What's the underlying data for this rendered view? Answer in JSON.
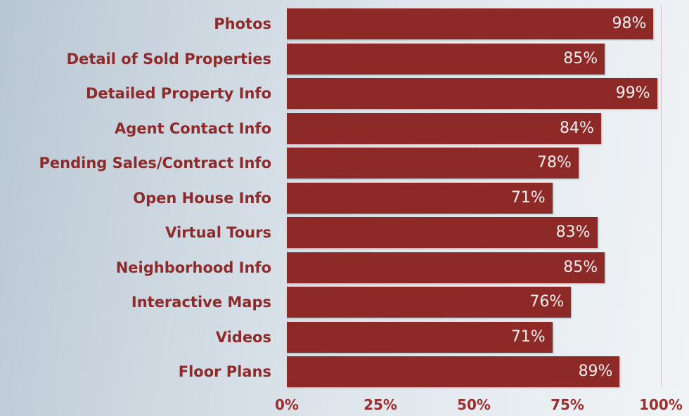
{
  "chart_data": {
    "type": "bar",
    "orientation": "horizontal",
    "categories": [
      "Photos",
      "Detail of Sold Properties",
      "Detailed Property Info",
      "Agent Contact Info",
      "Pending Sales/Contract Info",
      "Open House Info",
      "Virtual Tours",
      "Neighborhood Info",
      "Interactive Maps",
      "Videos",
      "Floor Plans"
    ],
    "values": [
      98,
      85,
      99,
      84,
      78,
      71,
      83,
      85,
      76,
      71,
      89
    ],
    "value_labels": [
      "98%",
      "85%",
      "99%",
      "84%",
      "78%",
      "71%",
      "83%",
      "85%",
      "76%",
      "71%",
      "89%"
    ],
    "x_ticks": [
      {
        "value": 0,
        "label": "0%"
      },
      {
        "value": 25,
        "label": "25%"
      },
      {
        "value": 50,
        "label": "50%"
      },
      {
        "value": 75,
        "label": "75%"
      },
      {
        "value": 100,
        "label": "100%"
      }
    ],
    "xlim": [
      0,
      100
    ],
    "grid": false,
    "colors": {
      "bar": "#8d2a28",
      "label": "#8e2a2a",
      "value_text": "#f3eeee"
    }
  }
}
